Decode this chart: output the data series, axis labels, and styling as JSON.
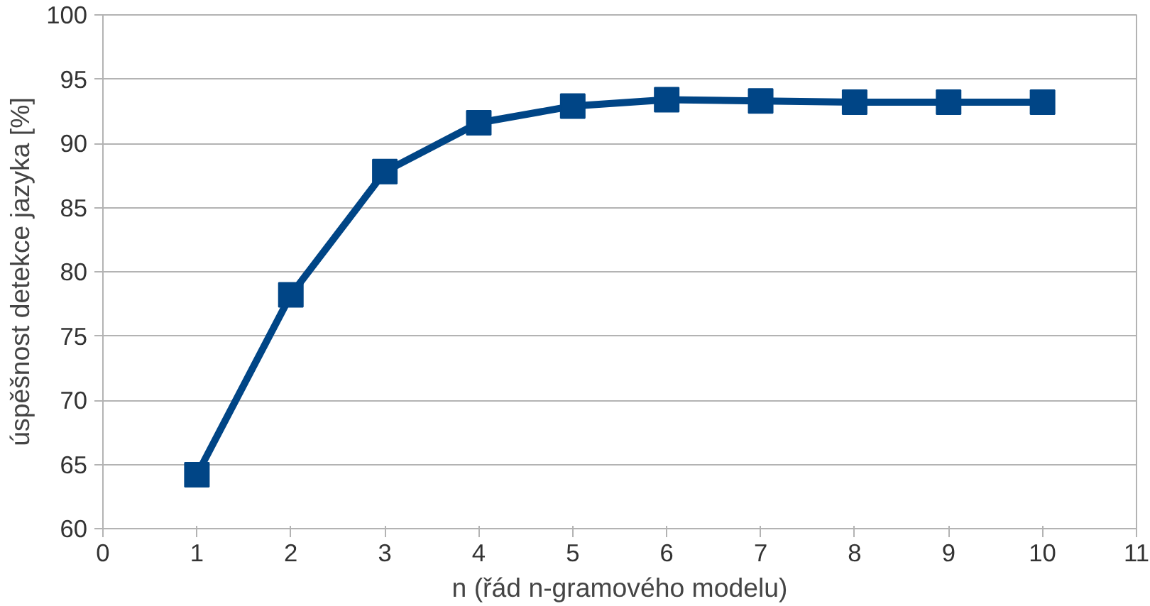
{
  "chart_data": {
    "type": "line",
    "xlabel": "n (řád n-gramového modelu)",
    "ylabel": "úspěšnost detekce jazyka [%]",
    "x": [
      1,
      2,
      3,
      4,
      5,
      6,
      7,
      8,
      9,
      10
    ],
    "series": [
      {
        "color": "#004586",
        "values": [
          64.2,
          78.2,
          87.8,
          91.6,
          92.9,
          93.4,
          93.3,
          93.2,
          93.2,
          93.2
        ]
      }
    ],
    "xlim": [
      0,
      11
    ],
    "xticks": [
      0,
      1,
      2,
      3,
      4,
      5,
      6,
      7,
      8,
      9,
      10,
      11
    ],
    "ylim": [
      60,
      100
    ],
    "yticks": [
      60,
      65,
      70,
      75,
      80,
      85,
      90,
      95,
      100
    ],
    "grid": "y",
    "marker": "square",
    "line_style": "solid"
  }
}
